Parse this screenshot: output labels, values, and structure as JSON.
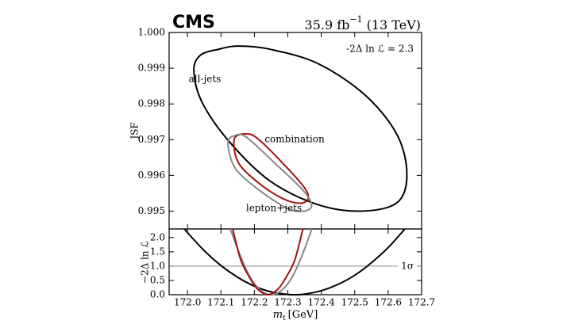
{
  "header": {
    "experiment": "CMS",
    "lumi": "35.9 fb",
    "lumi_exp": "−1",
    "energy": "(13 TeV)"
  },
  "chart_data": [
    {
      "type": "contour",
      "annotation": "-2Δ ln ℒ = 2.3",
      "y_label": "JSF",
      "xlim": [
        171.945,
        172.7
      ],
      "ylim": [
        0.9945,
        1.0
      ],
      "xticks": [
        172.0,
        172.1,
        172.2,
        172.3,
        172.4,
        172.5,
        172.6,
        172.7
      ],
      "yticks": [
        {
          "value": 0.995,
          "label": "0.995"
        },
        0.996,
        0.997,
        0.998,
        0.999,
        {
          "value": 1.0,
          "label": "1.000"
        }
      ],
      "series": [
        {
          "name": "all-jets",
          "color": "#000000",
          "x": [
            172.019,
            172.038,
            172.093,
            172.152,
            172.247,
            172.39,
            172.532,
            172.627,
            172.656,
            172.627,
            172.52,
            172.39,
            172.247,
            172.128,
            172.045,
            172.019
          ],
          "values": [
            0.99891,
            0.99936,
            0.99953,
            0.99962,
            0.99953,
            0.99913,
            0.99824,
            0.99713,
            0.99602,
            0.99524,
            0.995,
            0.99518,
            0.99584,
            0.99691,
            0.99802,
            0.99869
          ]
        },
        {
          "name": "combination",
          "color": "#a01010",
          "x": [
            172.14,
            172.176,
            172.211,
            172.283,
            172.347,
            172.361,
            172.337,
            172.283,
            172.211,
            172.152,
            172.128
          ],
          "values": [
            0.99702,
            0.99716,
            0.99702,
            0.99636,
            0.99569,
            0.99536,
            0.99522,
            0.99536,
            0.9958,
            0.99636,
            0.99673
          ]
        },
        {
          "name": "lepton+jets",
          "color": "#888888",
          "x": [
            172.121,
            172.14,
            172.176,
            172.259,
            172.342,
            172.371,
            172.349,
            172.295,
            172.2,
            172.14,
            172.116
          ],
          "values": [
            0.99691,
            0.99711,
            0.99707,
            0.99636,
            0.99562,
            0.99518,
            0.995,
            0.99509,
            0.99569,
            0.99624,
            0.99664
          ]
        }
      ]
    },
    {
      "type": "line",
      "y_label": "−2Δ ln ℒ",
      "x_label": "m",
      "x_label_sub": "t",
      "x_label_unit": "[GeV]",
      "xlim": [
        171.945,
        172.7
      ],
      "ylim": [
        0,
        2.3
      ],
      "xticks": [
        {
          "value": 172.0,
          "label": "172.0"
        },
        172.1,
        172.2,
        172.3,
        172.4,
        172.5,
        172.6,
        172.7
      ],
      "yticks": [
        {
          "value": 0,
          "label": "0.0"
        },
        0.5,
        {
          "value": 1,
          "label": "1.0"
        },
        1.5,
        {
          "value": 2,
          "label": "2.0"
        }
      ],
      "hline": 1,
      "hline_label": "1σ",
      "hline_color": "#888888",
      "series": [
        {
          "color": "#000000",
          "x": [
            171.99,
            172.05,
            172.1,
            172.15,
            172.2,
            172.25,
            172.3,
            172.32,
            172.35,
            172.4,
            172.45,
            172.5,
            172.55,
            172.6,
            172.65
          ],
          "values": [
            2.3,
            1.54,
            1.02,
            0.61,
            0.3,
            0.1,
            0.01,
            0,
            0.02,
            0.14,
            0.36,
            0.68,
            1.12,
            1.65,
            2.3
          ]
        },
        {
          "color": "#888888",
          "x": [
            172.128,
            172.16,
            172.19,
            172.22,
            172.25,
            172.28,
            172.31,
            172.34,
            172.372
          ],
          "values": [
            2.3,
            1.3,
            0.56,
            0.14,
            0,
            0.14,
            0.56,
            1.3,
            2.3
          ]
        },
        {
          "color": "#a01010",
          "x": [
            172.135,
            172.16,
            172.19,
            172.21,
            172.24,
            172.27,
            172.29,
            172.32,
            172.345
          ],
          "values": [
            2.3,
            1.19,
            0.52,
            0.19,
            0,
            0.19,
            0.52,
            1.19,
            2.3
          ]
        }
      ]
    }
  ]
}
